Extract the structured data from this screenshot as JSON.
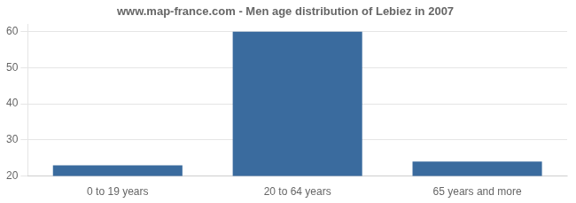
{
  "chart_data": {
    "type": "bar",
    "title": "www.map-france.com - Men age distribution of Lebiez in 2007",
    "categories": [
      "0 to 19 years",
      "20 to 64 years",
      "65 years and more"
    ],
    "values": [
      23,
      60,
      24
    ],
    "color": "#3a6b9e",
    "ylim": [
      20,
      62
    ],
    "yticks": [
      20,
      30,
      40,
      50,
      60
    ],
    "grid": true
  }
}
